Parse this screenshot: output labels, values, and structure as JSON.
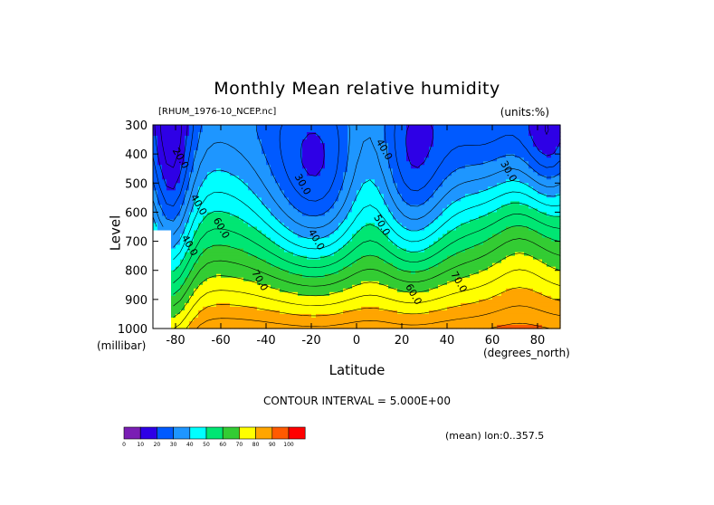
{
  "chart_data": {
    "type": "heatmap",
    "title": "Monthly Mean relative humidity",
    "dataset": "[RHUM_1976-10_NCEP.nc]",
    "units": "(units:%)",
    "xlabel": "Latitude",
    "x_unit": "(degrees_north)",
    "ylabel": "Level",
    "y_unit": "(millibar)",
    "x_range": [
      -90,
      90
    ],
    "y_range": [
      1000,
      300
    ],
    "x_ticks": [
      "-80",
      "-60",
      "-40",
      "-20",
      "0",
      "20",
      "40",
      "60",
      "80"
    ],
    "y_ticks": [
      "300",
      "400",
      "500",
      "600",
      "700",
      "800",
      "900",
      "1000"
    ],
    "contour_interval": "CONTOUR INTERVAL = 5.000E+00",
    "averaging": "(mean) lon:0..357.5",
    "contour_labels": [
      {
        "text": "20.0",
        "x": -79,
        "y": 420
      },
      {
        "text": "40.0",
        "x": -71,
        "y": 580
      },
      {
        "text": "60.0",
        "x": -61,
        "y": 660
      },
      {
        "text": "40.0",
        "x": -75,
        "y": 720
      },
      {
        "text": "70.0",
        "x": -44,
        "y": 840
      },
      {
        "text": "30.0",
        "x": -25,
        "y": 510
      },
      {
        "text": "40.0",
        "x": -19,
        "y": 700
      },
      {
        "text": "40.0",
        "x": 11,
        "y": 390
      },
      {
        "text": "50.0",
        "x": 10,
        "y": 650
      },
      {
        "text": "60.0",
        "x": 24,
        "y": 888
      },
      {
        "text": "70.0",
        "x": 44,
        "y": 845
      },
      {
        "text": "30.0",
        "x": 66,
        "y": 465
      }
    ],
    "colorbar": {
      "levels": [
        "0",
        "10",
        "20",
        "30",
        "40",
        "50",
        "60",
        "70",
        "80",
        "90",
        "100"
      ],
      "colors": [
        "#7a1eb4",
        "#2e00e6",
        "#005aff",
        "#1e96ff",
        "#00ffff",
        "#00e673",
        "#33cc33",
        "#ffff00",
        "#ffa500",
        "#ff5a00",
        "#ff0000"
      ]
    }
  }
}
